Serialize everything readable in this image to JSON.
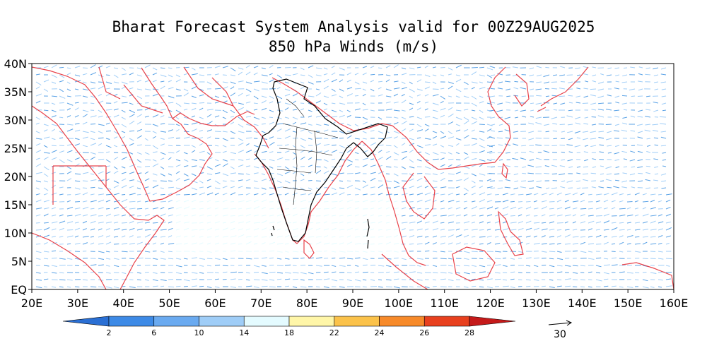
{
  "title": "Bharat Forecast System Analysis valid for 00Z29AUG2025",
  "subtitle": "850 hPa Winds (m/s)",
  "axes": {
    "lon_ticks": [
      "20E",
      "30E",
      "40E",
      "50E",
      "60E",
      "70E",
      "80E",
      "90E",
      "100E",
      "110E",
      "120E",
      "130E",
      "140E",
      "150E",
      "160E"
    ],
    "lat_ticks": [
      "40N",
      "35N",
      "30N",
      "25N",
      "20N",
      "15N",
      "10N",
      "5N",
      "EQ"
    ],
    "lon_range": [
      20,
      160
    ],
    "lat_range": [
      0,
      40
    ]
  },
  "colorbar": {
    "labels": [
      "2",
      "6",
      "10",
      "14",
      "18",
      "22",
      "24",
      "26",
      "28"
    ],
    "colors": [
      "#2a6fd4",
      "#3d8ae6",
      "#6aaaf0",
      "#9fcdf7",
      "#e4fbff",
      "#fff6a8",
      "#fbc24a",
      "#f78a2a",
      "#e8401e",
      "#c51a1a"
    ]
  },
  "reference_vector": {
    "label": "30"
  },
  "colors": {
    "coastline": "#e8424a",
    "india_border": "#000000",
    "vector_light": "#9fcdf7",
    "vector_mid": "#5aa2e6"
  }
}
